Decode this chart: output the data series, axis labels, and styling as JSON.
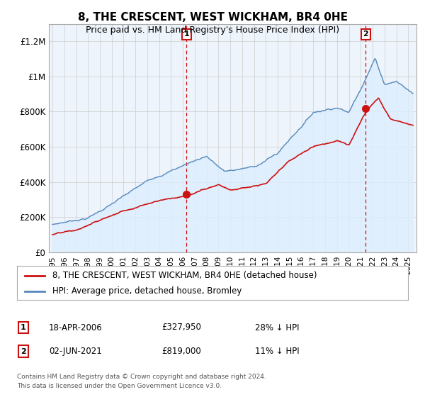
{
  "title": "8, THE CRESCENT, WEST WICKHAM, BR4 0HE",
  "subtitle": "Price paid vs. HM Land Registry's House Price Index (HPI)",
  "hpi_color": "#5588bb",
  "hpi_fill_color": "#ddeeff",
  "price_color": "#cc1111",
  "annotation_color": "#cc1111",
  "ylim": [
    0,
    1300000
  ],
  "yticks": [
    0,
    200000,
    400000,
    600000,
    800000,
    1000000,
    1200000
  ],
  "ytick_labels": [
    "£0",
    "£200K",
    "£400K",
    "£600K",
    "£800K",
    "£1M",
    "£1.2M"
  ],
  "xlabel_years": [
    "1995",
    "1996",
    "1997",
    "1998",
    "1999",
    "2000",
    "2001",
    "2002",
    "2003",
    "2004",
    "2005",
    "2006",
    "2007",
    "2008",
    "2009",
    "2010",
    "2011",
    "2012",
    "2013",
    "2014",
    "2015",
    "2016",
    "2017",
    "2018",
    "2019",
    "2020",
    "2021",
    "2022",
    "2023",
    "2024",
    "2025"
  ],
  "transaction1_year": 2006.3,
  "transaction1_price": 327950,
  "transaction2_year": 2021.42,
  "transaction2_price": 819000,
  "legend_price_label": "8, THE CRESCENT, WEST WICKHAM, BR4 0HE (detached house)",
  "legend_hpi_label": "HPI: Average price, detached house, Bromley",
  "annotation1_date": "18-APR-2006",
  "annotation1_price": "£327,950",
  "annotation1_pct": "28% ↓ HPI",
  "annotation2_date": "02-JUN-2021",
  "annotation2_price": "£819,000",
  "annotation2_pct": "11% ↓ HPI",
  "footer": "Contains HM Land Registry data © Crown copyright and database right 2024.\nThis data is licensed under the Open Government Licence v3.0.",
  "background_color": "#ffffff",
  "grid_color": "#cccccc",
  "chart_bg_color": "#eef4fb"
}
